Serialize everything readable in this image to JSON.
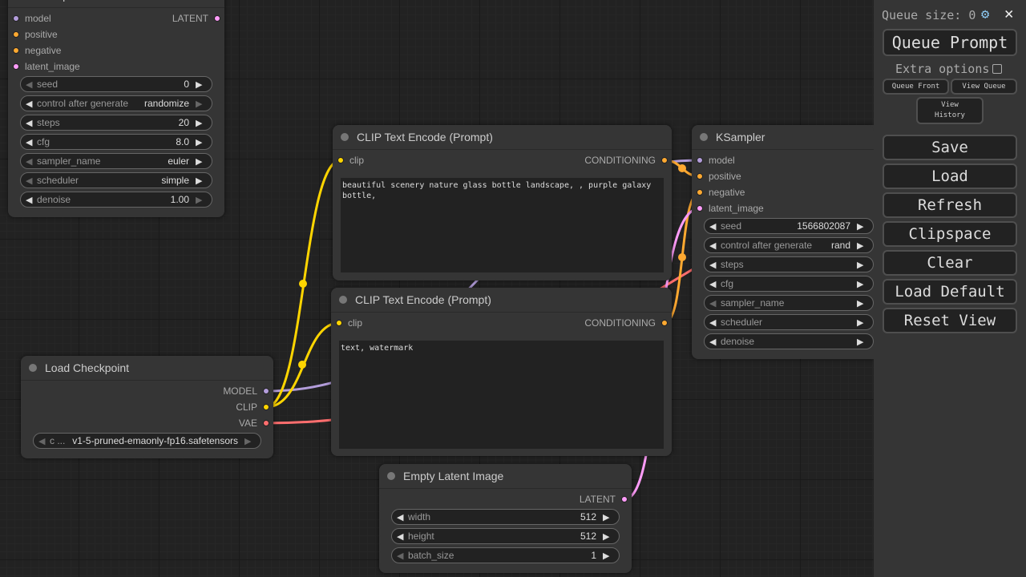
{
  "nodes": [
    {
      "id": "ksampler-top",
      "title": "KSampler",
      "inputs": [
        {
          "label": "model",
          "color": "#b39ddb"
        },
        {
          "label": "positive",
          "color": "#ffa931"
        },
        {
          "label": "negative",
          "color": "#ffa931"
        },
        {
          "label": "latent_image",
          "color": "#ff9cf9"
        }
      ],
      "outputs": [
        {
          "label": "LATENT",
          "color": "#ff9cf9"
        }
      ],
      "widgets": [
        {
          "label": "seed",
          "value": "0",
          "dec_enabled": false,
          "inc_enabled": true
        },
        {
          "label": "control after generate",
          "value": "randomize",
          "dec_enabled": true,
          "inc_enabled": false
        },
        {
          "label": "steps",
          "value": "20",
          "dec_enabled": true,
          "inc_enabled": true
        },
        {
          "label": "cfg",
          "value": "8.0",
          "dec_enabled": true,
          "inc_enabled": true
        },
        {
          "label": "sampler_name",
          "value": "euler",
          "dec_enabled": false,
          "inc_enabled": true
        },
        {
          "label": "scheduler",
          "value": "simple",
          "dec_enabled": false,
          "inc_enabled": true
        },
        {
          "label": "denoise",
          "value": "1.00",
          "dec_enabled": true,
          "inc_enabled": false
        }
      ]
    },
    {
      "id": "clip-positive",
      "title": "CLIP Text Encode (Prompt)",
      "inputs": [
        {
          "label": "clip",
          "color": "#ffd500"
        }
      ],
      "outputs": [
        {
          "label": "CONDITIONING",
          "color": "#ffa931"
        }
      ],
      "text": "beautiful scenery nature glass bottle landscape, , purple galaxy bottle,"
    },
    {
      "id": "clip-negative",
      "title": "CLIP Text Encode (Prompt)",
      "inputs": [
        {
          "label": "clip",
          "color": "#ffd500"
        }
      ],
      "outputs": [
        {
          "label": "CONDITIONING",
          "color": "#ffa931"
        }
      ],
      "text": "text, watermark"
    },
    {
      "id": "load-checkpoint",
      "title": "Load Checkpoint",
      "inputs": [],
      "outputs": [
        {
          "label": "MODEL",
          "color": "#b39ddb"
        },
        {
          "label": "CLIP",
          "color": "#ffd500"
        },
        {
          "label": "VAE",
          "color": "#ff6e6e"
        }
      ],
      "widgets": [
        {
          "label": "c ...",
          "value": "v1-5-pruned-emaonly-fp16.safetensors",
          "dec_enabled": false,
          "inc_enabled": false
        }
      ]
    },
    {
      "id": "empty-latent",
      "title": "Empty Latent Image",
      "inputs": [],
      "outputs": [
        {
          "label": "LATENT",
          "color": "#ff9cf9"
        }
      ],
      "widgets": [
        {
          "label": "width",
          "value": "512",
          "dec_enabled": true,
          "inc_enabled": true
        },
        {
          "label": "height",
          "value": "512",
          "dec_enabled": true,
          "inc_enabled": true
        },
        {
          "label": "batch_size",
          "value": "1",
          "dec_enabled": false,
          "inc_enabled": true
        }
      ]
    },
    {
      "id": "ksampler",
      "title": "KSampler",
      "inputs": [
        {
          "label": "model",
          "color": "#b39ddb"
        },
        {
          "label": "positive",
          "color": "#ffa931"
        },
        {
          "label": "negative",
          "color": "#ffa931"
        },
        {
          "label": "latent_image",
          "color": "#ff9cf9"
        }
      ],
      "outputs": [],
      "widgets": [
        {
          "label": "seed",
          "value": "1566802087",
          "dec_enabled": true,
          "inc_enabled": true
        },
        {
          "label": "control after generate",
          "value": "rand",
          "dec_enabled": true,
          "inc_enabled": true
        },
        {
          "label": "steps",
          "value": "",
          "dec_enabled": true,
          "inc_enabled": true
        },
        {
          "label": "cfg",
          "value": "",
          "dec_enabled": true,
          "inc_enabled": true
        },
        {
          "label": "sampler_name",
          "value": "",
          "dec_enabled": false,
          "inc_enabled": true
        },
        {
          "label": "scheduler",
          "value": "",
          "dec_enabled": true,
          "inc_enabled": true
        },
        {
          "label": "denoise",
          "value": "",
          "dec_enabled": true,
          "inc_enabled": true
        }
      ]
    }
  ],
  "panel": {
    "queue_size": "Queue size: 0",
    "settings_icon": "gear-icon",
    "close_icon": "close-icon",
    "queue_prompt": "Queue Prompt",
    "extra_options": "Extra options",
    "extra_options_checked": false,
    "queue_front": "Queue Front",
    "view_queue": "View Queue",
    "view_history": "View History",
    "buttons": [
      "Save",
      "Load",
      "Refresh",
      "Clipspace",
      "Clear",
      "Load Default",
      "Reset View"
    ]
  }
}
